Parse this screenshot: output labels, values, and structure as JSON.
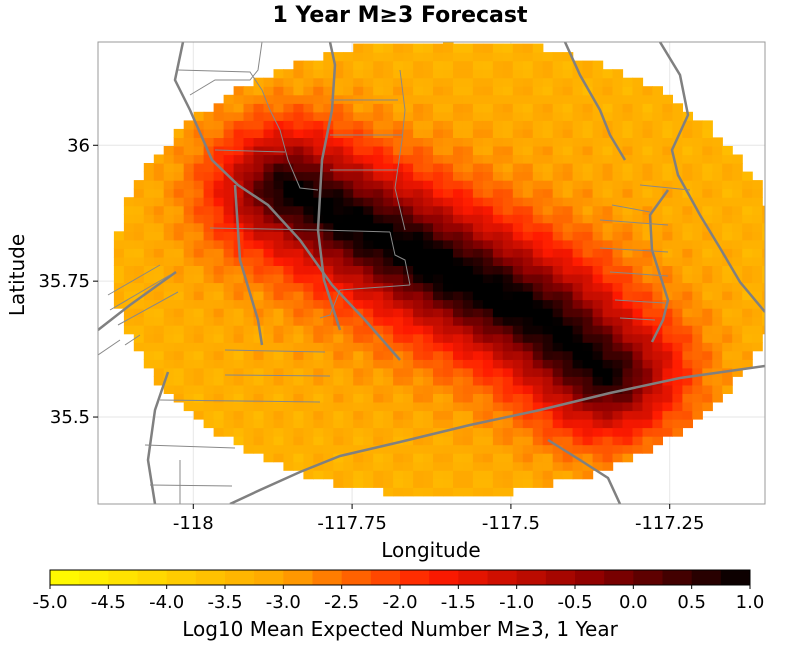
{
  "chart_data": {
    "type": "heatmap",
    "title": "1 Year M≥3 Forecast",
    "xlabel": "Longitude",
    "ylabel": "Latitude",
    "xlim": [
      -118.15,
      -117.1
    ],
    "ylim": [
      35.34,
      36.19
    ],
    "x_ticks": [
      {
        "value": -118,
        "label": "-118"
      },
      {
        "value": -117.75,
        "label": "-117.75"
      },
      {
        "value": -117.5,
        "label": "-117.5"
      },
      {
        "value": -117.25,
        "label": "-117.25"
      }
    ],
    "y_ticks": [
      {
        "value": 36,
        "label": "36"
      },
      {
        "value": 35.75,
        "label": "35.75"
      },
      {
        "value": 35.5,
        "label": "35.5"
      }
    ],
    "grid": true,
    "field": {
      "center_lon": -117.6,
      "center_lat": 35.775,
      "radius_lon": 0.525,
      "radius_lat": 0.42,
      "cell_deg": 0.0157,
      "background_level": -3.3,
      "peak_level": 0.9,
      "rupture_trace": [
        [
          -117.85,
          35.92
        ],
        [
          -117.45,
          35.68
        ],
        [
          -117.35,
          35.58
        ]
      ]
    },
    "colorbar": {
      "label": "Log10 Mean Expected Number M≥3, 1 Year",
      "min": -5.0,
      "max": 1.0,
      "ticks": [
        "-5.0",
        "-4.5",
        "-4.0",
        "-3.5",
        "-3.0",
        "-2.5",
        "-2.0",
        "-1.5",
        "-1.0",
        "-0.5",
        "0.0",
        "0.5",
        "1.0"
      ],
      "colors": [
        "#ffff00",
        "#ffa500",
        "#ff0000",
        "#7f0000",
        "#000000"
      ]
    },
    "overlay_colors": {
      "fault": "#808080",
      "border": "#888888"
    }
  }
}
